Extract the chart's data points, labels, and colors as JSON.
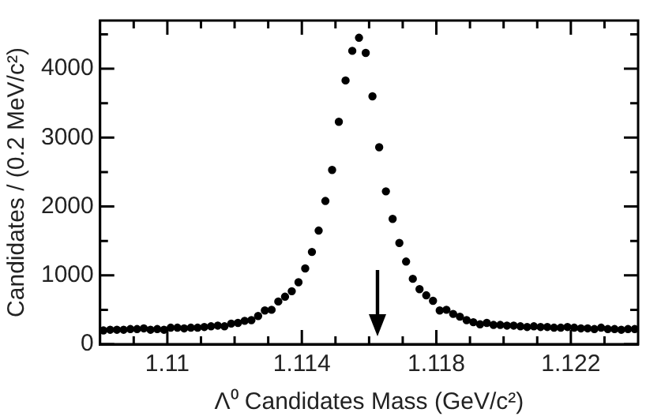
{
  "chart_data": {
    "type": "scatter",
    "xlabel": "Λ⁰ Candidates Mass (GeV/c²)",
    "ylabel": "Candidates / (0.2 MeV/c²)",
    "x": [
      1.1081,
      1.1083,
      1.1085,
      1.1087,
      1.1089,
      1.1091,
      1.1093,
      1.1095,
      1.1097,
      1.1099,
      1.1101,
      1.1103,
      1.1105,
      1.1107,
      1.1109,
      1.1111,
      1.1113,
      1.1115,
      1.1117,
      1.1119,
      1.1121,
      1.1123,
      1.1125,
      1.1127,
      1.1129,
      1.1131,
      1.1133,
      1.1135,
      1.1137,
      1.1139,
      1.1141,
      1.1143,
      1.1145,
      1.1147,
      1.1149,
      1.1151,
      1.1153,
      1.1155,
      1.1157,
      1.1159,
      1.1161,
      1.1163,
      1.1165,
      1.1167,
      1.1169,
      1.1171,
      1.1173,
      1.1175,
      1.1177,
      1.1179,
      1.1181,
      1.1183,
      1.1185,
      1.1187,
      1.1189,
      1.1191,
      1.1193,
      1.1195,
      1.1197,
      1.1199,
      1.1201,
      1.1203,
      1.1205,
      1.1207,
      1.1209,
      1.1211,
      1.1213,
      1.1215,
      1.1217,
      1.1219,
      1.1221,
      1.1223,
      1.1225,
      1.1227,
      1.1229,
      1.1231,
      1.1233,
      1.1235,
      1.1237,
      1.1239
    ],
    "series": [
      {
        "color": "#000000",
        "values": [
          200,
          210,
          210,
          210,
          220,
          220,
          230,
          210,
          220,
          210,
          240,
          240,
          230,
          240,
          240,
          250,
          260,
          270,
          260,
          300,
          310,
          340,
          350,
          410,
          490,
          500,
          620,
          690,
          770,
          900,
          1100,
          1340,
          1650,
          2080,
          2530,
          3230,
          3830,
          4260,
          4450,
          4230,
          3600,
          2860,
          2220,
          1820,
          1470,
          1200,
          950,
          800,
          710,
          630,
          490,
          500,
          440,
          400,
          350,
          320,
          290,
          310,
          280,
          280,
          270,
          270,
          260,
          250,
          260,
          250,
          250,
          240,
          240,
          250,
          240,
          230,
          230,
          220,
          240,
          220,
          220,
          210,
          220,
          220
        ]
      }
    ],
    "marker": "circle",
    "grid": false,
    "legend": false,
    "xlim": [
      1.108,
      1.124
    ],
    "xticks": [
      {
        "value": 1.109,
        "label": null
      },
      {
        "value": 1.11,
        "label": "1.11"
      },
      {
        "value": 1.111,
        "label": null
      },
      {
        "value": 1.112,
        "label": null
      },
      {
        "value": 1.113,
        "label": null
      },
      {
        "value": 1.114,
        "label": "1.114"
      },
      {
        "value": 1.115,
        "label": null
      },
      {
        "value": 1.116,
        "label": null
      },
      {
        "value": 1.117,
        "label": null
      },
      {
        "value": 1.118,
        "label": "1.118"
      },
      {
        "value": 1.119,
        "label": null
      },
      {
        "value": 1.12,
        "label": null
      },
      {
        "value": 1.121,
        "label": null
      },
      {
        "value": 1.122,
        "label": "1.122"
      },
      {
        "value": 1.123,
        "label": null
      }
    ],
    "ylim": [
      0,
      4700
    ],
    "yticks": [
      0,
      {
        "value": 500,
        "label": null
      },
      1000,
      {
        "value": 1500,
        "label": null
      },
      2000,
      {
        "value": 2500,
        "label": null
      },
      3000,
      {
        "value": 3500,
        "label": null
      },
      4000,
      {
        "value": 4500,
        "label": null
      }
    ]
  }
}
